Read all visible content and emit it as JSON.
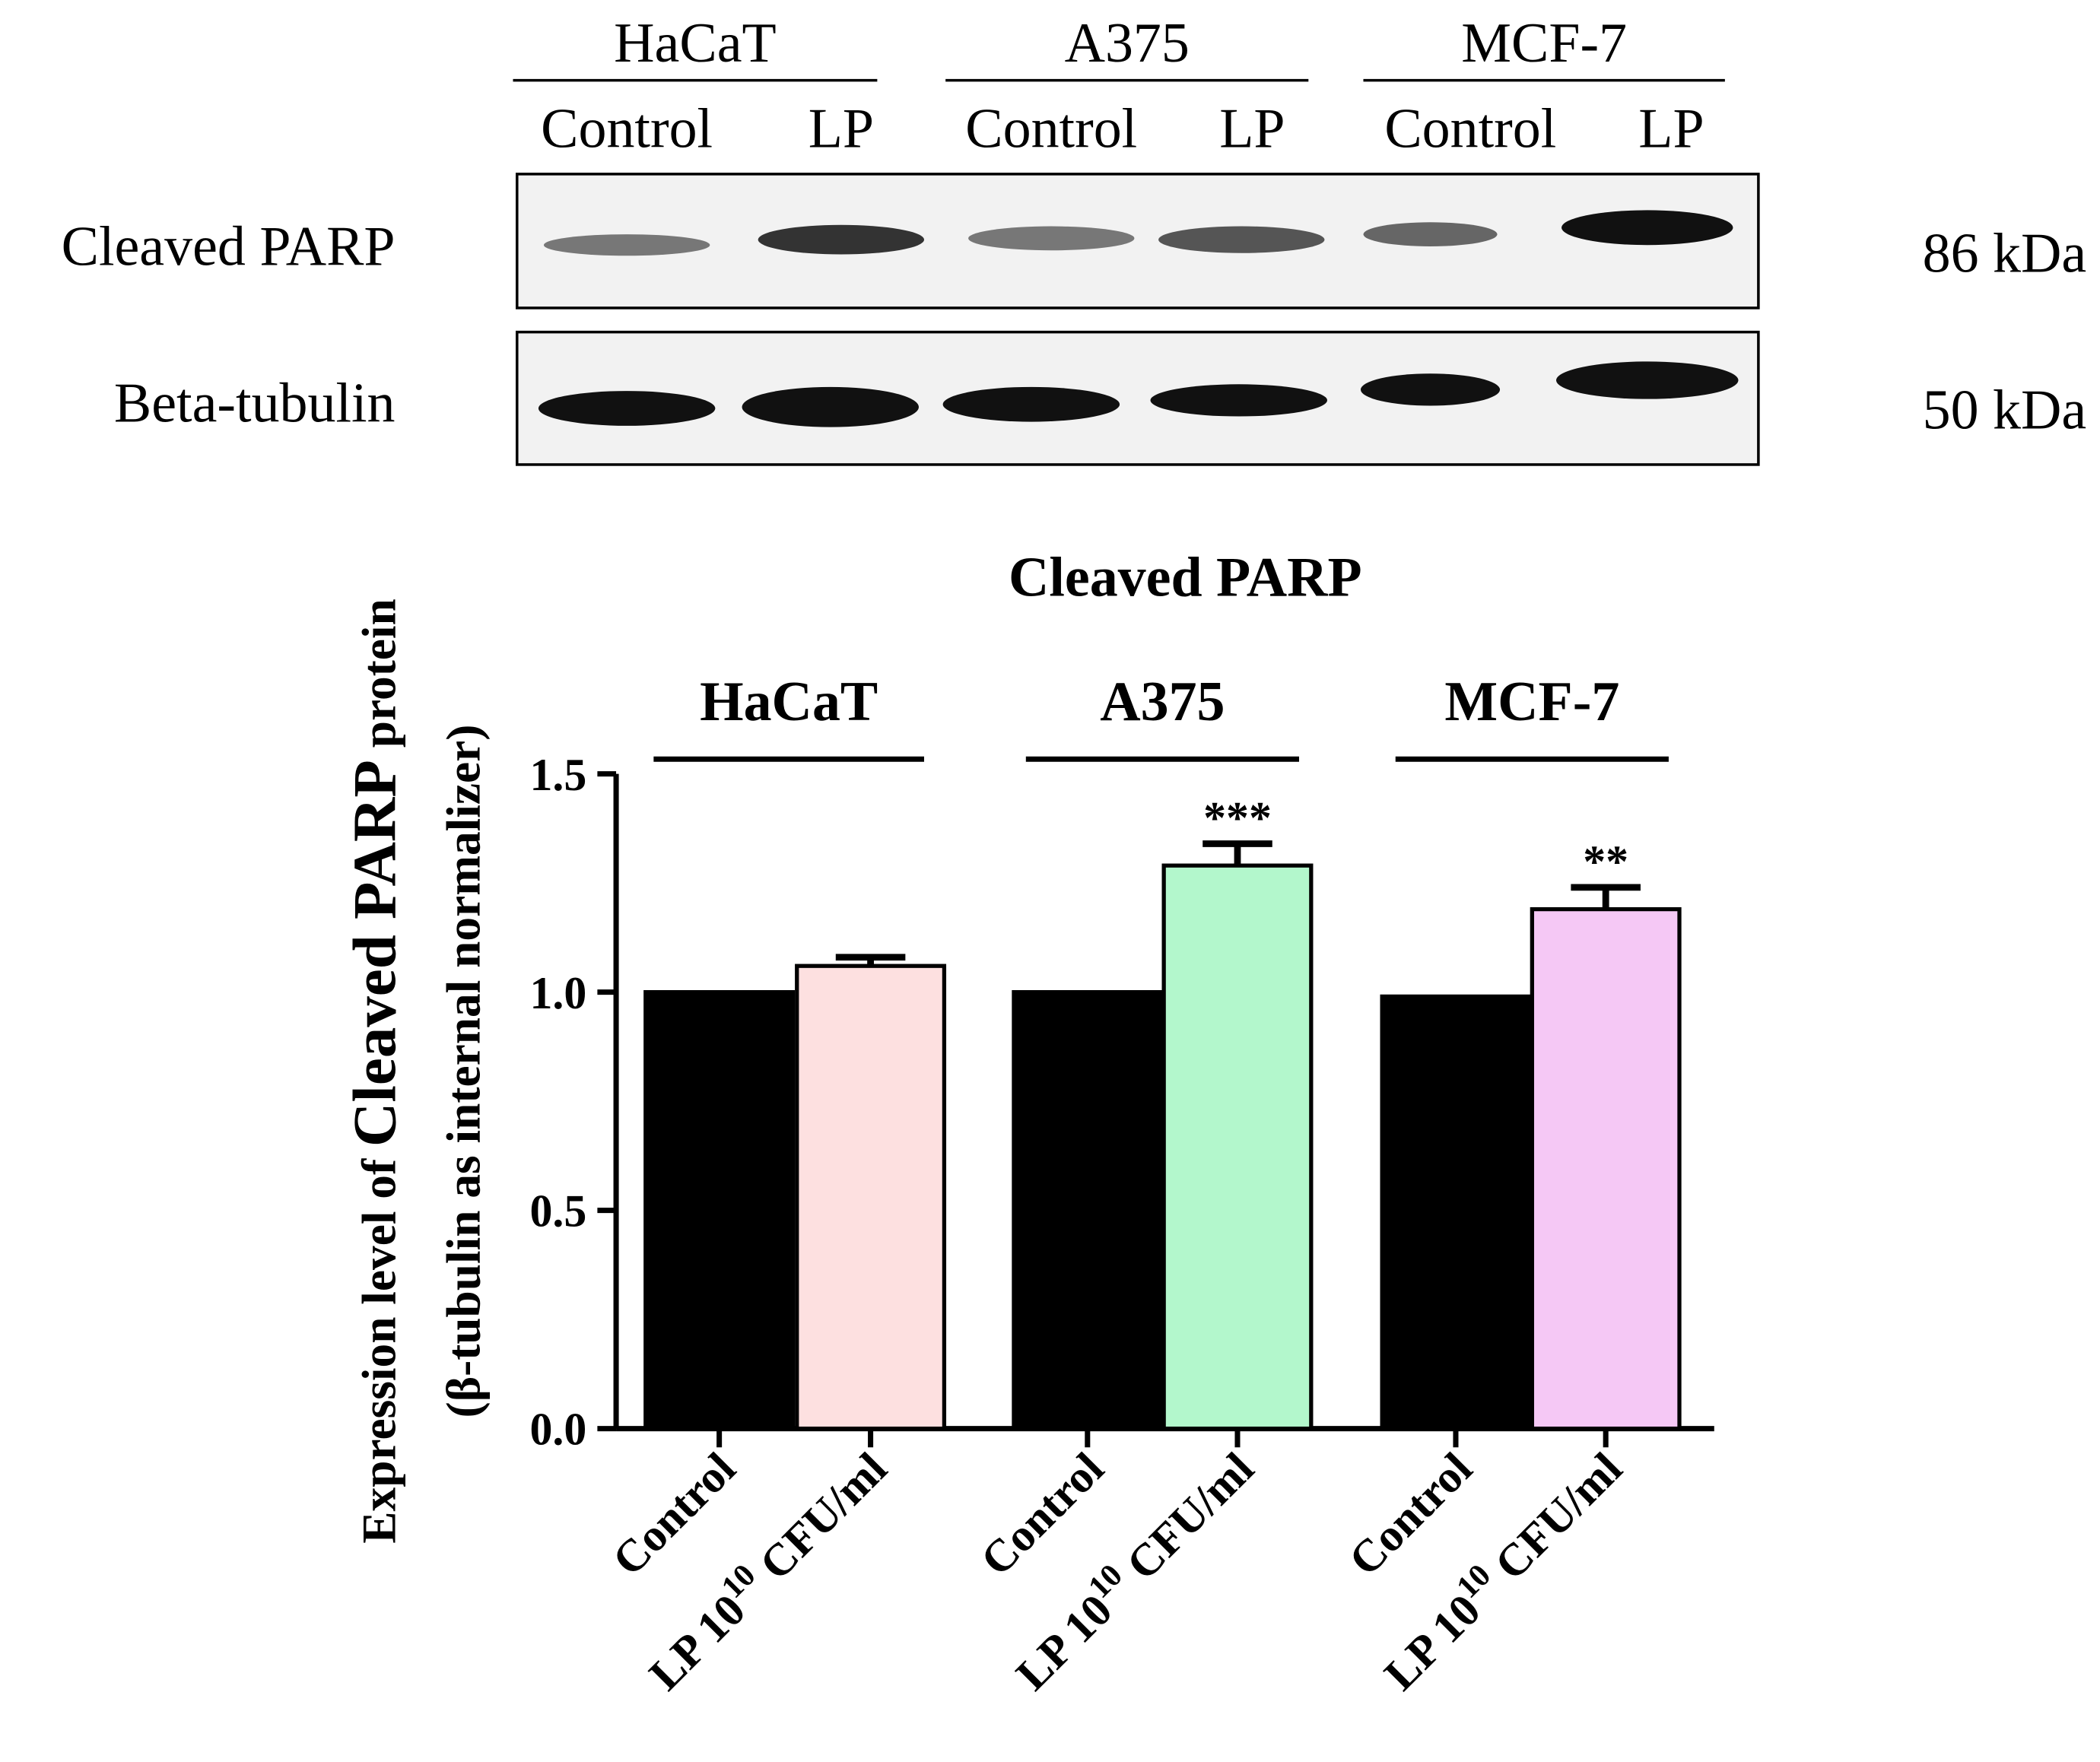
{
  "blot": {
    "groups": [
      {
        "name": "HaCaT",
        "lanes": [
          "Control",
          "LP"
        ]
      },
      {
        "name": "A375",
        "lanes": [
          "Control",
          "LP"
        ]
      },
      {
        "name": "MCF-7",
        "lanes": [
          "Control",
          "LP"
        ]
      }
    ],
    "rows": [
      {
        "label": "Cleaved PARP",
        "size": "86 kDa"
      },
      {
        "label": "Beta-tubulin",
        "size": "50 kDa"
      }
    ]
  },
  "chart_data": {
    "type": "bar",
    "title": "Cleaved PARP",
    "y_label": [
      "Expression level of ",
      "Cleaved PARP",
      " protein"
    ],
    "y_label_2": "(β-tubulin as internal normalizer)",
    "groups": [
      "HaCaT",
      "A375",
      "MCF-7"
    ],
    "categories": [
      "Control",
      {
        "base": "LP 10",
        "sup": "10",
        "suffix": " CFU/ml"
      },
      "Control",
      {
        "base": "LP 10",
        "sup": "10",
        "suffix": " CFU/ml"
      },
      "Control",
      {
        "base": "LP 10",
        "sup": "10",
        "suffix": " CFU/ml"
      }
    ],
    "values": [
      1.0,
      1.06,
      1.0,
      1.29,
      0.99,
      1.19
    ],
    "errors": [
      null,
      0.02,
      null,
      0.05,
      null,
      0.05
    ],
    "colors": [
      "#000000",
      "#fde0e0",
      "#000000",
      "#b3f7cc",
      "#000000",
      "#f5c8f5"
    ],
    "annotations": [
      null,
      null,
      null,
      "***",
      null,
      "**"
    ],
    "ylim": [
      0,
      1.5
    ],
    "yticks": [
      {
        "value": 0,
        "label": "0.0"
      },
      0.5,
      {
        "value": 1,
        "label": "1.0"
      },
      1.5
    ]
  }
}
